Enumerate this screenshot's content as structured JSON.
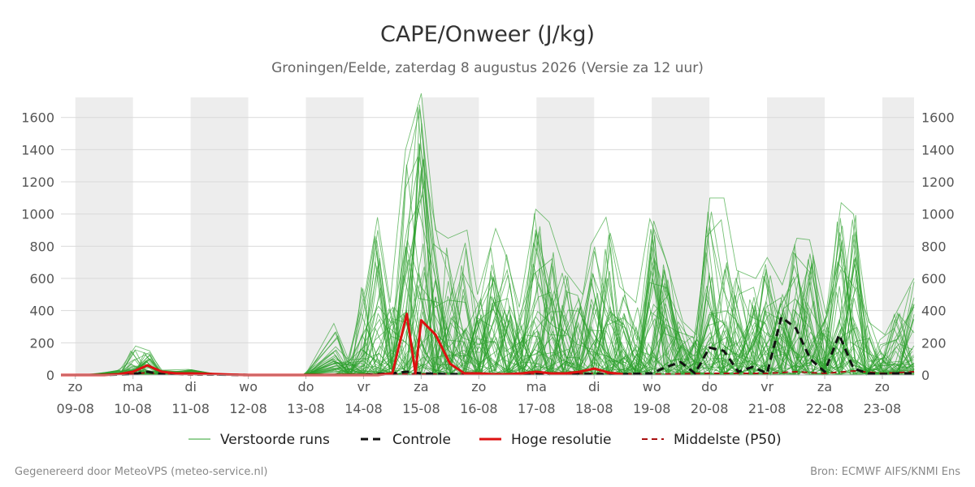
{
  "header": {
    "title": "CAPE/Onweer (J/kg)",
    "subtitle": "Groningen/Eelde, zaterdag  8 augustus 2026 (Versie za 12 uur)"
  },
  "footer": {
    "left": "Gegenereerd door MeteoVPS (meteo-service.nl)",
    "right": "Bron: ECMWF AIFS/KNMI Ens"
  },
  "colors": {
    "ensemble": "#2ca02c",
    "control": "#111111",
    "high_res": "#dd1111",
    "median": "#aa1111",
    "weekend_band": "#ededed",
    "grid": "#d9d9d9"
  },
  "chart_data": {
    "type": "line",
    "title": "CAPE/Onweer (J/kg)",
    "subtitle": "Groningen/Eelde, zaterdag  8 augustus 2026 (Versie za 12 uur)",
    "xlabel": "",
    "ylabel": "",
    "x_unit": "days from 2026-08-08 00:00",
    "xlim": [
      0.75,
      15.55
    ],
    "ylim": [
      0,
      1750
    ],
    "yticks": [
      0,
      200,
      400,
      600,
      800,
      1000,
      1200,
      1400,
      1600
    ],
    "grid": true,
    "legend_position": "bottom",
    "x_tick_labels": [
      {
        "day": "zo",
        "date": "09-08"
      },
      {
        "day": "ma",
        "date": "10-08"
      },
      {
        "day": "di",
        "date": "11-08"
      },
      {
        "day": "wo",
        "date": "12-08"
      },
      {
        "day": "do",
        "date": "13-08"
      },
      {
        "day": "vr",
        "date": "14-08"
      },
      {
        "day": "za",
        "date": "15-08"
      },
      {
        "day": "zo",
        "date": "16-08"
      },
      {
        "day": "ma",
        "date": "17-08"
      },
      {
        "day": "di",
        "date": "18-08"
      },
      {
        "day": "wo",
        "date": "19-08"
      },
      {
        "day": "do",
        "date": "20-08"
      },
      {
        "day": "vr",
        "date": "21-08"
      },
      {
        "day": "za",
        "date": "22-08"
      },
      {
        "day": "zo",
        "date": "23-08"
      }
    ],
    "x_ticks": [
      1,
      2,
      3,
      4,
      5,
      6,
      7,
      8,
      9,
      10,
      11,
      12,
      13,
      14,
      15
    ],
    "shaded_bands": [
      [
        1,
        2
      ],
      [
        3,
        4
      ],
      [
        5,
        6
      ],
      [
        7,
        8
      ],
      [
        9,
        10
      ],
      [
        11,
        12
      ],
      [
        13,
        14
      ],
      [
        15,
        15.55
      ]
    ],
    "legend": [
      {
        "label": "Verstoorde runs",
        "style": "thin-green"
      },
      {
        "label": "Controle",
        "style": "dashed-black"
      },
      {
        "label": "Hoge resolutie",
        "style": "solid-red"
      },
      {
        "label": "Middelste (P50)",
        "style": "dashed-darkred"
      }
    ],
    "series": [
      {
        "name": "Hoge resolutie",
        "role": "high_res",
        "x": [
          0.75,
          1.0,
          1.25,
          1.5,
          1.75,
          2.0,
          2.25,
          2.5,
          2.75,
          3.0,
          3.25,
          3.5,
          3.75,
          4.0,
          4.5,
          5.0,
          5.5,
          6.0,
          6.25,
          6.5,
          6.75,
          6.9,
          7.0,
          7.25,
          7.5,
          7.75,
          8.0,
          8.25,
          8.5,
          8.75,
          9.0,
          9.25,
          9.5,
          9.75,
          10.0,
          10.25,
          10.5
        ],
        "y": [
          0,
          0,
          0,
          0,
          5,
          20,
          60,
          20,
          10,
          10,
          8,
          5,
          2,
          0,
          0,
          0,
          0,
          0,
          0,
          10,
          380,
          10,
          340,
          250,
          70,
          10,
          10,
          5,
          5,
          10,
          20,
          10,
          10,
          20,
          40,
          15,
          5
        ]
      },
      {
        "name": "Controle",
        "role": "control",
        "x": [
          0.75,
          1.0,
          1.5,
          2.0,
          2.25,
          2.5,
          3.0,
          4.0,
          5.0,
          6.0,
          6.5,
          6.75,
          7.0,
          7.5,
          8.0,
          8.5,
          9.0,
          9.5,
          10.0,
          10.5,
          11.0,
          11.25,
          11.5,
          11.75,
          12.0,
          12.25,
          12.5,
          12.75,
          13.0,
          13.25,
          13.5,
          13.75,
          14.0,
          14.25,
          14.5,
          14.75,
          15.0,
          15.25,
          15.55
        ],
        "y": [
          0,
          0,
          0,
          5,
          20,
          5,
          5,
          0,
          0,
          0,
          10,
          20,
          10,
          5,
          5,
          5,
          5,
          10,
          5,
          5,
          10,
          50,
          80,
          10,
          170,
          150,
          20,
          50,
          10,
          360,
          290,
          100,
          20,
          250,
          40,
          10,
          5,
          10,
          10
        ]
      },
      {
        "name": "Middelste (P50)",
        "role": "median",
        "x": [
          0.75,
          2.0,
          2.25,
          2.5,
          3.0,
          6.0,
          6.75,
          7.0,
          8.0,
          9.0,
          10.0,
          11.0,
          12.0,
          13.0,
          13.5,
          14.0,
          14.5,
          15.0,
          15.55
        ],
        "y": [
          0,
          5,
          15,
          5,
          0,
          0,
          5,
          5,
          5,
          5,
          10,
          5,
          10,
          10,
          20,
          10,
          25,
          10,
          20
        ]
      }
    ],
    "ensemble": {
      "name": "Verstoorde runs",
      "count": 50,
      "x": [
        0.75,
        1.25,
        1.75,
        2.0,
        2.25,
        2.5,
        3.0,
        3.5,
        4.0,
        4.5,
        5.0,
        5.5,
        5.75,
        6.0,
        6.25,
        6.5,
        6.75,
        7.0,
        7.25,
        7.5,
        7.75,
        8.0,
        8.25,
        8.5,
        8.75,
        9.0,
        9.25,
        9.5,
        9.75,
        10.0,
        10.25,
        10.5,
        10.75,
        11.0,
        11.25,
        11.5,
        11.75,
        12.0,
        12.25,
        12.5,
        12.75,
        13.0,
        13.25,
        13.5,
        13.75,
        14.0,
        14.25,
        14.5,
        14.75,
        15.0,
        15.25,
        15.55
      ],
      "p_low": [
        0,
        0,
        0,
        0,
        0,
        0,
        0,
        0,
        0,
        0,
        0,
        0,
        0,
        0,
        0,
        0,
        0,
        0,
        0,
        0,
        0,
        0,
        0,
        0,
        0,
        0,
        0,
        0,
        0,
        0,
        0,
        0,
        0,
        0,
        0,
        0,
        0,
        0,
        0,
        0,
        0,
        0,
        0,
        0,
        0,
        0,
        0,
        0,
        0,
        0,
        0,
        0
      ],
      "p_high": [
        0,
        5,
        30,
        180,
        150,
        30,
        35,
        5,
        0,
        0,
        5,
        320,
        100,
        550,
        980,
        450,
        1400,
        1750,
        900,
        850,
        900,
        500,
        910,
        760,
        420,
        1030,
        950,
        650,
        500,
        810,
        980,
        550,
        450,
        970,
        710,
        330,
        250,
        1100,
        1100,
        650,
        600,
        730,
        560,
        850,
        840,
        380,
        1070,
        1000,
        330,
        250,
        410,
        600
      ]
    }
  }
}
